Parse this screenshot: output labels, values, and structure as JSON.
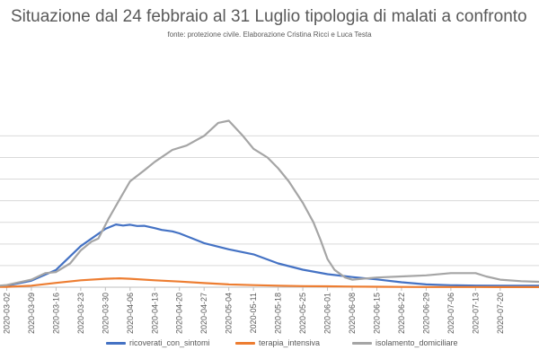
{
  "chart_data": {
    "type": "line",
    "title": "Situazione dal 24 febbraio al 31 Luglio tipologia di malati a confronto",
    "subtitle": "fonte: protezione civile. Elaborazione Cristina Ricci e Luca Testa",
    "x_start": "2020-02-24",
    "x_end": "2020-07-31",
    "x_ticks": [
      "2020-03-02",
      "2020-03-09",
      "2020-03-16",
      "2020-03-23",
      "2020-03-30",
      "2020-04-06",
      "2020-04-13",
      "2020-04-20",
      "2020-04-27",
      "2020-05-04",
      "2020-05-11",
      "2020-05-18",
      "2020-05-25",
      "2020-06-01",
      "2020-06-08",
      "2020-06-15",
      "2020-06-22",
      "2020-06-29",
      "2020-07-06",
      "2020-07-13",
      "2020-07-20"
    ],
    "ylim": [
      0,
      110000
    ],
    "y_gridlines": [
      0,
      10000,
      20000,
      30000,
      40000,
      50000,
      60000,
      70000
    ],
    "grid": true,
    "legend_position": "bottom",
    "series": [
      {
        "name": "ricoverati_con_sintomi",
        "color": "#4472C4",
        "points": [
          [
            "2020-02-24",
            100
          ],
          [
            "2020-03-02",
            700
          ],
          [
            "2020-03-09",
            3000
          ],
          [
            "2020-03-16",
            8000
          ],
          [
            "2020-03-23",
            19000
          ],
          [
            "2020-03-30",
            27000
          ],
          [
            "2020-04-02",
            29000
          ],
          [
            "2020-04-04",
            28500
          ],
          [
            "2020-04-06",
            28900
          ],
          [
            "2020-04-08",
            28300
          ],
          [
            "2020-04-10",
            28400
          ],
          [
            "2020-04-13",
            27300
          ],
          [
            "2020-04-15",
            26500
          ],
          [
            "2020-04-18",
            25800
          ],
          [
            "2020-04-20",
            24900
          ],
          [
            "2020-04-23",
            23000
          ],
          [
            "2020-04-27",
            20400
          ],
          [
            "2020-05-04",
            17500
          ],
          [
            "2020-05-11",
            15200
          ],
          [
            "2020-05-18",
            11000
          ],
          [
            "2020-05-25",
            8100
          ],
          [
            "2020-06-01",
            6000
          ],
          [
            "2020-06-08",
            4700
          ],
          [
            "2020-06-15",
            3600
          ],
          [
            "2020-06-22",
            2300
          ],
          [
            "2020-06-29",
            1300
          ],
          [
            "2020-07-06",
            900
          ],
          [
            "2020-07-13",
            750
          ],
          [
            "2020-07-20",
            700
          ],
          [
            "2020-07-31",
            720
          ]
        ]
      },
      {
        "name": "terapia_intensiva",
        "color": "#ED7D31",
        "points": [
          [
            "2020-02-24",
            30
          ],
          [
            "2020-03-02",
            150
          ],
          [
            "2020-03-09",
            700
          ],
          [
            "2020-03-16",
            2000
          ],
          [
            "2020-03-23",
            3200
          ],
          [
            "2020-03-30",
            3900
          ],
          [
            "2020-04-03",
            4100
          ],
          [
            "2020-04-06",
            3900
          ],
          [
            "2020-04-13",
            3200
          ],
          [
            "2020-04-20",
            2600
          ],
          [
            "2020-04-27",
            1900
          ],
          [
            "2020-05-04",
            1300
          ],
          [
            "2020-05-11",
            950
          ],
          [
            "2020-05-18",
            700
          ],
          [
            "2020-05-25",
            500
          ],
          [
            "2020-06-01",
            400
          ],
          [
            "2020-06-08",
            300
          ],
          [
            "2020-06-15",
            200
          ],
          [
            "2020-06-22",
            140
          ],
          [
            "2020-06-29",
            100
          ],
          [
            "2020-07-06",
            80
          ],
          [
            "2020-07-13",
            70
          ],
          [
            "2020-07-20",
            60
          ],
          [
            "2020-07-31",
            45
          ]
        ]
      },
      {
        "name": "isolamento_domiciliare",
        "color": "#A5A5A5",
        "points": [
          [
            "2020-02-24",
            100
          ],
          [
            "2020-03-02",
            1000
          ],
          [
            "2020-03-09",
            3500
          ],
          [
            "2020-03-13",
            6500
          ],
          [
            "2020-03-16",
            7000
          ],
          [
            "2020-03-20",
            11000
          ],
          [
            "2020-03-23",
            17000
          ],
          [
            "2020-03-26",
            21000
          ],
          [
            "2020-03-28",
            22500
          ],
          [
            "2020-03-31",
            32000
          ],
          [
            "2020-04-03",
            40500
          ],
          [
            "2020-04-06",
            49000
          ],
          [
            "2020-04-10",
            54000
          ],
          [
            "2020-04-13",
            58000
          ],
          [
            "2020-04-18",
            63500
          ],
          [
            "2020-04-22",
            65500
          ],
          [
            "2020-04-27",
            70000
          ],
          [
            "2020-05-01",
            76000
          ],
          [
            "2020-05-04",
            77000
          ],
          [
            "2020-05-08",
            70000
          ],
          [
            "2020-05-11",
            64000
          ],
          [
            "2020-05-15",
            60000
          ],
          [
            "2020-05-18",
            55000
          ],
          [
            "2020-05-21",
            49000
          ],
          [
            "2020-05-25",
            39000
          ],
          [
            "2020-05-28",
            30000
          ],
          [
            "2020-05-30",
            22000
          ],
          [
            "2020-06-01",
            13000
          ],
          [
            "2020-06-03",
            8000
          ],
          [
            "2020-06-06",
            4500
          ],
          [
            "2020-06-08",
            3500
          ],
          [
            "2020-06-15",
            4500
          ],
          [
            "2020-06-22",
            5000
          ],
          [
            "2020-06-29",
            5500
          ],
          [
            "2020-07-06",
            6500
          ],
          [
            "2020-07-13",
            6500
          ],
          [
            "2020-07-16",
            5000
          ],
          [
            "2020-07-20",
            3500
          ],
          [
            "2020-07-26",
            2800
          ],
          [
            "2020-07-31",
            2500
          ]
        ]
      }
    ]
  }
}
